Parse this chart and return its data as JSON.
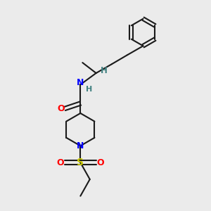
{
  "background_color": "#ebebeb",
  "atoms": {
    "C_black": "#1a1a1a",
    "N_blue": "#0000ff",
    "O_red": "#ff0000",
    "S_yellow": "#cccc00",
    "H_teal": "#408080"
  },
  "bond_color": "#1a1a1a",
  "bond_width": 1.5,
  "xlim": [
    0,
    10
  ],
  "ylim": [
    0,
    10
  ]
}
